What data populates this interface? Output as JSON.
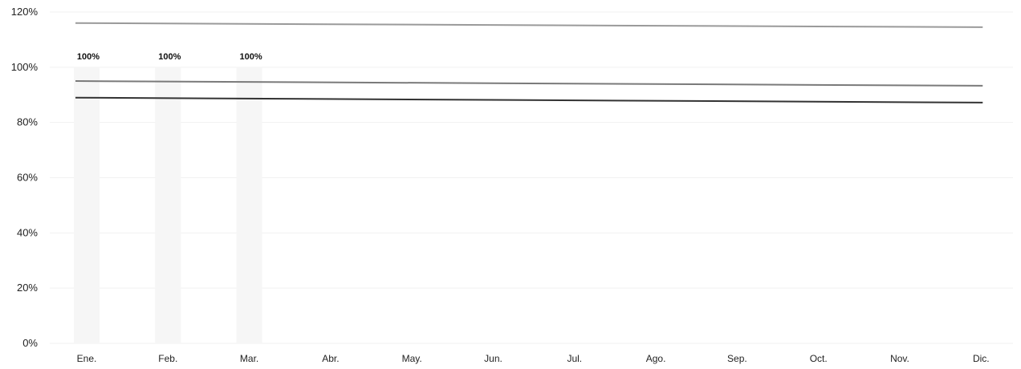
{
  "chart_data": {
    "type": "bar",
    "categories": [
      "Ene.",
      "Feb.",
      "Mar.",
      "Abr.",
      "May.",
      "Jun.",
      "Jul.",
      "Ago.",
      "Sep.",
      "Oct.",
      "Nov.",
      "Dic."
    ],
    "values": [
      100,
      100,
      100,
      null,
      null,
      null,
      null,
      null,
      null,
      null,
      null,
      null
    ],
    "data_labels": [
      "100%",
      "100%",
      "100%",
      "",
      "",
      "",
      "",
      "",
      "",
      "",
      "",
      ""
    ],
    "reference_lines": [
      {
        "start": 116,
        "end": 114.5,
        "color": "#9a9a9a"
      },
      {
        "start": 95,
        "end": 93.3,
        "color": "#7a7a7a"
      },
      {
        "start": 89,
        "end": 87.2,
        "color": "#333333"
      }
    ],
    "ylim": [
      0,
      120
    ],
    "yticks": [
      "0%",
      "20%",
      "40%",
      "60%",
      "80%",
      "100%",
      "120%"
    ],
    "ytick_values": [
      0,
      20,
      40,
      60,
      80,
      100,
      120
    ],
    "grid": true,
    "colors": {
      "bar": "#f6f6f6",
      "grid": "#f1f1f1",
      "text": "#222222"
    }
  }
}
